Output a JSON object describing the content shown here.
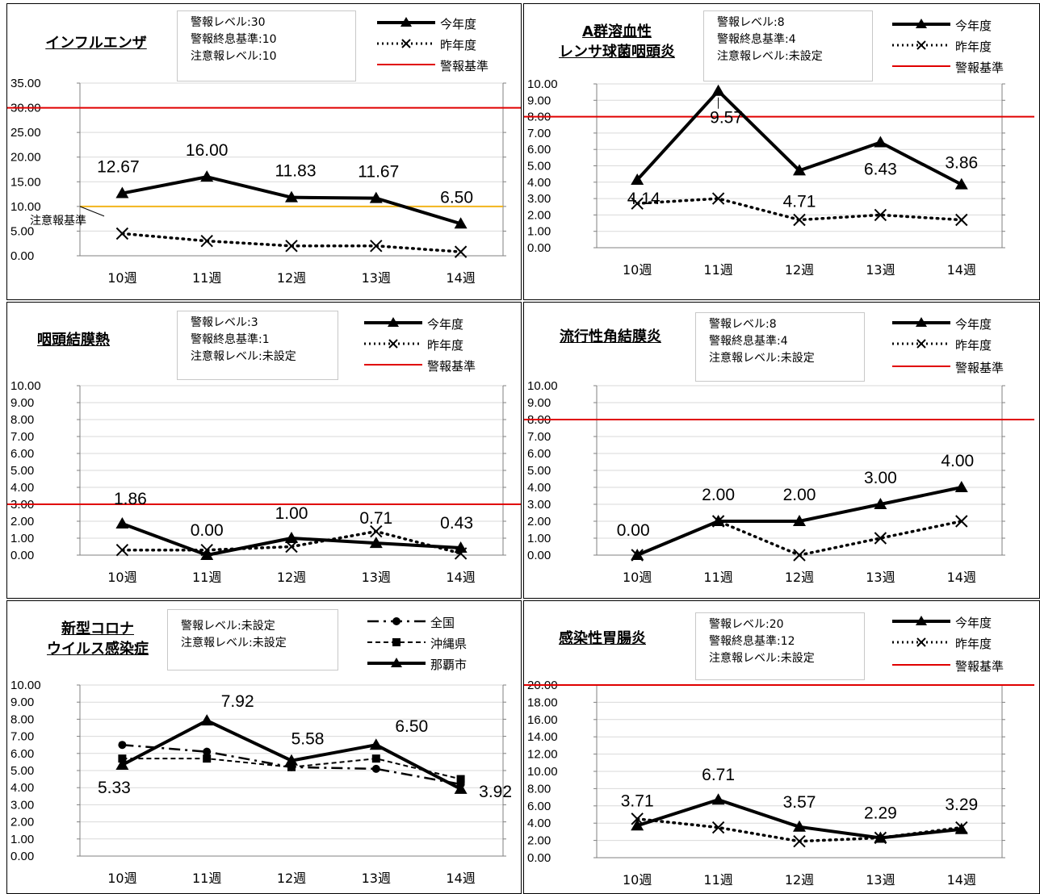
{
  "legend_labels": {
    "current": "今年度",
    "previous": "昨年度",
    "alert": "警報基準",
    "national": "全国",
    "okinawa": "沖縄県",
    "naha": "那覇市"
  },
  "colors": {
    "alert": "#e00000",
    "caution": "#f2b51c",
    "grid": "#d9d9d9",
    "line": "#000000"
  },
  "panels": [
    {
      "title": [
        "インフルエンザ"
      ],
      "info": [
        "警報レベル:30",
        "警報終息基準:10",
        "注意報レベル:10"
      ],
      "caution_label": "注意報基準"
    },
    {
      "title": [
        "A群溶血性",
        "レンサ球菌咽頭炎"
      ],
      "info": [
        "警報レベル:8",
        "警報終息基準:4",
        "注意報レベル:未設定"
      ]
    },
    {
      "title": [
        "咽頭結膜熱"
      ],
      "info": [
        "警報レベル:3",
        "警報終息基準:1",
        "注意報レベル:未設定"
      ]
    },
    {
      "title": [
        "流行性角結膜炎"
      ],
      "info": [
        "警報レベル:8",
        "警報終息基準:4",
        "注意報レベル:未設定"
      ]
    },
    {
      "title": [
        "新型コロナ",
        "ウイルス感染症"
      ],
      "info": [
        "警報レベル:未設定",
        "注意報レベル:未設定"
      ]
    },
    {
      "title": [
        "感染性胃腸炎"
      ],
      "info": [
        "警報レベル:20",
        "警報終息基準:12",
        "注意報レベル:未設定"
      ]
    }
  ],
  "chart_data": [
    {
      "type": "line",
      "title": "インフルエンザ",
      "categories": [
        "10週",
        "11週",
        "12週",
        "13週",
        "14週"
      ],
      "ylim": [
        0,
        35
      ],
      "ytick_step": 5,
      "series": [
        {
          "name": "今年度",
          "values": [
            12.67,
            16.0,
            11.83,
            11.67,
            6.5
          ],
          "data_labels": [
            "12.67",
            "16.00",
            "11.83",
            "11.67",
            "6.50"
          ]
        },
        {
          "name": "昨年度",
          "values": [
            4.5,
            3.0,
            2.0,
            2.0,
            0.8
          ]
        }
      ],
      "alert_level": 30,
      "caution_level": 10
    },
    {
      "type": "line",
      "title": "A群溶血性レンサ球菌咽頭炎",
      "categories": [
        "10週",
        "11週",
        "12週",
        "13週",
        "14週"
      ],
      "ylim": [
        0,
        10
      ],
      "ytick_step": 1,
      "series": [
        {
          "name": "今年度",
          "values": [
            4.14,
            9.57,
            4.71,
            6.43,
            3.86
          ],
          "data_labels": [
            "4.14",
            "9.57",
            "4.71",
            "6.43",
            "3.86"
          ]
        },
        {
          "name": "昨年度",
          "values": [
            2.7,
            3.0,
            1.7,
            2.0,
            1.7
          ]
        }
      ],
      "alert_level": 8
    },
    {
      "type": "line",
      "title": "咽頭結膜熱",
      "categories": [
        "10週",
        "11週",
        "12週",
        "13週",
        "14週"
      ],
      "ylim": [
        0,
        10
      ],
      "ytick_step": 1,
      "series": [
        {
          "name": "今年度",
          "values": [
            1.86,
            0.0,
            1.0,
            0.71,
            0.43
          ],
          "data_labels": [
            "1.86",
            "0.00",
            "1.00",
            "0.71",
            "0.43"
          ]
        },
        {
          "name": "昨年度",
          "values": [
            0.3,
            0.3,
            0.5,
            1.4,
            0.1
          ]
        }
      ],
      "alert_level": 3
    },
    {
      "type": "line",
      "title": "流行性角結膜炎",
      "categories": [
        "10週",
        "11週",
        "12週",
        "13週",
        "14週"
      ],
      "ylim": [
        0,
        10
      ],
      "ytick_step": 1,
      "series": [
        {
          "name": "今年度",
          "values": [
            0.0,
            2.0,
            2.0,
            3.0,
            4.0
          ],
          "data_labels": [
            "0.00",
            "2.00",
            "2.00",
            "3.00",
            "4.00"
          ]
        },
        {
          "name": "昨年度",
          "values": [
            0.0,
            2.0,
            0.0,
            1.0,
            2.0
          ]
        }
      ],
      "alert_level": 8
    },
    {
      "type": "line",
      "title": "新型コロナウイルス感染症",
      "categories": [
        "10週",
        "11週",
        "12週",
        "13週",
        "14週"
      ],
      "ylim": [
        0,
        10
      ],
      "ytick_step": 1,
      "series": [
        {
          "name": "全国",
          "values": [
            6.5,
            6.1,
            5.2,
            5.1,
            4.2
          ]
        },
        {
          "name": "沖縄県",
          "values": [
            5.7,
            5.7,
            5.2,
            5.7,
            4.5
          ]
        },
        {
          "name": "那覇市",
          "values": [
            5.33,
            7.92,
            5.58,
            6.5,
            3.92
          ],
          "data_labels": [
            "5.33",
            "7.92",
            "5.58",
            "6.50",
            "3.92"
          ]
        }
      ]
    },
    {
      "type": "line",
      "title": "感染性胃腸炎",
      "categories": [
        "10週",
        "11週",
        "12週",
        "13週",
        "14週"
      ],
      "ylim": [
        0,
        20
      ],
      "ytick_step": 2,
      "series": [
        {
          "name": "今年度",
          "values": [
            3.71,
            6.71,
            3.57,
            2.29,
            3.29
          ],
          "data_labels": [
            "3.71",
            "6.71",
            "3.57",
            "2.29",
            "3.29"
          ]
        },
        {
          "name": "昨年度",
          "values": [
            4.5,
            3.5,
            1.9,
            2.3,
            3.5
          ]
        }
      ],
      "alert_level": 20
    }
  ]
}
